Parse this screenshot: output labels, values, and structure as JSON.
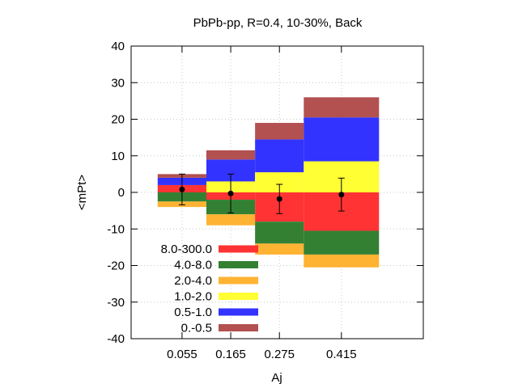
{
  "chart_data": {
    "type": "bar",
    "title": "PbPb-pp, R=0.4, 10-30%, Back",
    "xlabel": "Aj",
    "ylabel": "<mPt>",
    "ylim": [
      -40,
      40
    ],
    "yticks": [
      -40,
      -30,
      -20,
      -10,
      0,
      10,
      20,
      30,
      40
    ],
    "grid": true,
    "legend_position": "bottom-left",
    "bins": [
      {
        "label": "0.055",
        "lo": 0.0,
        "hi": 0.11
      },
      {
        "label": "0.165",
        "lo": 0.11,
        "hi": 0.22
      },
      {
        "label": "0.275",
        "lo": 0.22,
        "hi": 0.33
      },
      {
        "label": "0.415",
        "lo": 0.33,
        "hi": 0.5
      }
    ],
    "xlim": [
      -0.06,
      0.6
    ],
    "series": [
      {
        "name": "8.0-300.0",
        "color": "#ff3333",
        "values": [
          2.0,
          -2.0,
          -8.0,
          -10.5
        ]
      },
      {
        "name": "4.0-8.0",
        "color": "#338033",
        "values": [
          -2.5,
          -4.0,
          -6.0,
          -6.5
        ]
      },
      {
        "name": "2.0-4.0",
        "color": "#ffb333",
        "values": [
          -1.5,
          -3.0,
          -3.0,
          -3.5
        ]
      },
      {
        "name": "1.0-2.0",
        "color": "#ffff33",
        "values": [
          0.0,
          3.0,
          5.5,
          8.5
        ]
      },
      {
        "name": "0.5-1.0",
        "color": "#3333ff",
        "values": [
          2.0,
          6.0,
          9.0,
          12.0
        ]
      },
      {
        "name": "0.-0.5",
        "color": "#b35050",
        "values": [
          1.0,
          2.5,
          4.5,
          5.5
        ]
      }
    ],
    "points": [
      {
        "x": 0.055,
        "y": 0.8,
        "err": 4.2
      },
      {
        "x": 0.165,
        "y": -0.3,
        "err": 5.3
      },
      {
        "x": 0.275,
        "y": -1.8,
        "err": 4.0
      },
      {
        "x": 0.415,
        "y": -0.6,
        "err": 4.5
      }
    ]
  }
}
